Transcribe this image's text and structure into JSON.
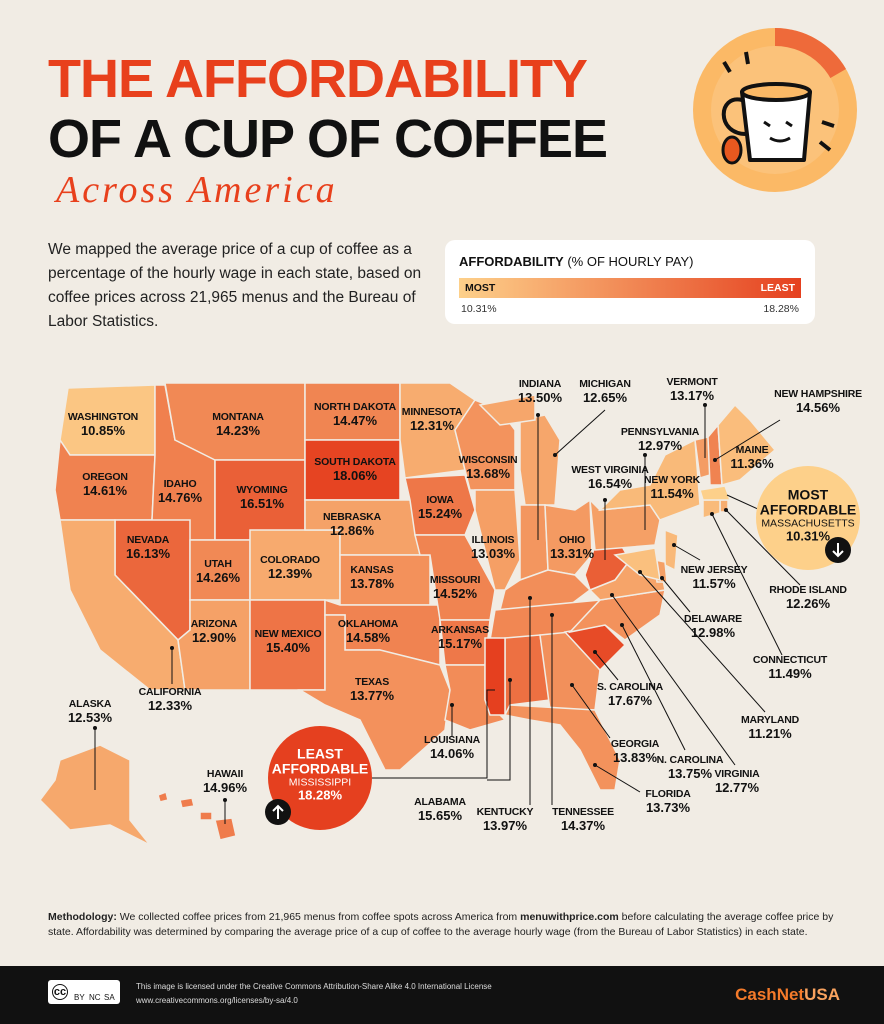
{
  "header": {
    "title_line_1": "THE AFFORDABILITY",
    "title_line_2": "OF A CUP OF COFFEE",
    "subtitle": "Across America"
  },
  "description": "We mapped the average price of a cup of coffee as a percentage of the hourly wage in each state, based on coffee prices across 21,965 menus and the Bureau of Labor Statistics.",
  "legend": {
    "title": "AFFORDABILITY",
    "unit": "(% OF HOURLY PAY)",
    "low_label": "MOST",
    "high_label": "LEAST",
    "low_value": "10.31%",
    "high_value": "18.28%"
  },
  "states": [
    {
      "name": "WASHINGTON",
      "value": "10.85%"
    },
    {
      "name": "OREGON",
      "value": "14.61%"
    },
    {
      "name": "IDAHO",
      "value": "14.76%"
    },
    {
      "name": "MONTANA",
      "value": "14.23%"
    },
    {
      "name": "WYOMING",
      "value": "16.51%"
    },
    {
      "name": "NEVADA",
      "value": "16.13%"
    },
    {
      "name": "CALIFORNIA",
      "value": "12.33%"
    },
    {
      "name": "UTAH",
      "value": "14.26%"
    },
    {
      "name": "COLORADO",
      "value": "12.39%"
    },
    {
      "name": "ARIZONA",
      "value": "12.90%"
    },
    {
      "name": "NEW MEXICO",
      "value": "15.40%"
    },
    {
      "name": "NORTH DAKOTA",
      "value": "14.47%"
    },
    {
      "name": "SOUTH DAKOTA",
      "value": "18.06%"
    },
    {
      "name": "NEBRASKA",
      "value": "12.86%"
    },
    {
      "name": "KANSAS",
      "value": "13.78%"
    },
    {
      "name": "OKLAHOMA",
      "value": "14.58%"
    },
    {
      "name": "TEXAS",
      "value": "13.77%"
    },
    {
      "name": "MINNESOTA",
      "value": "12.31%"
    },
    {
      "name": "IOWA",
      "value": "15.24%"
    },
    {
      "name": "MISSOURI",
      "value": "14.52%"
    },
    {
      "name": "ARKANSAS",
      "value": "15.17%"
    },
    {
      "name": "LOUISIANA",
      "value": "14.06%"
    },
    {
      "name": "WISCONSIN",
      "value": "13.68%"
    },
    {
      "name": "ILLINOIS",
      "value": "13.03%"
    },
    {
      "name": "MICHIGAN",
      "value": "12.65%"
    },
    {
      "name": "INDIANA",
      "value": "13.50%"
    },
    {
      "name": "OHIO",
      "value": "13.31%"
    },
    {
      "name": "KENTUCKY",
      "value": "13.97%"
    },
    {
      "name": "TENNESSEE",
      "value": "14.37%"
    },
    {
      "name": "ALABAMA",
      "value": "15.65%"
    },
    {
      "name": "GEORGIA",
      "value": "13.83%"
    },
    {
      "name": "FLORIDA",
      "value": "13.73%"
    },
    {
      "name": "S. CAROLINA",
      "value": "17.67%"
    },
    {
      "name": "N. CAROLINA",
      "value": "13.75%"
    },
    {
      "name": "VIRGINIA",
      "value": "12.77%"
    },
    {
      "name": "WEST VIRGINIA",
      "value": "16.54%"
    },
    {
      "name": "PENNSYLVANIA",
      "value": "12.97%"
    },
    {
      "name": "NEW YORK",
      "value": "11.54%"
    },
    {
      "name": "VERMONT",
      "value": "13.17%"
    },
    {
      "name": "NEW HAMPSHIRE",
      "value": "14.56%"
    },
    {
      "name": "MAINE",
      "value": "11.36%"
    },
    {
      "name": "RHODE ISLAND",
      "value": "12.26%"
    },
    {
      "name": "CONNECTICUT",
      "value": "11.49%"
    },
    {
      "name": "NEW JERSEY",
      "value": "11.57%"
    },
    {
      "name": "DELAWARE",
      "value": "12.98%"
    },
    {
      "name": "MARYLAND",
      "value": "11.21%"
    },
    {
      "name": "ALASKA",
      "value": "12.53%"
    },
    {
      "name": "HAWAII",
      "value": "14.96%"
    }
  ],
  "callouts": {
    "most": {
      "heading_1": "MOST",
      "heading_2": "AFFORDABLE",
      "state": "MASSACHUSETTS",
      "value": "10.31%"
    },
    "least": {
      "heading_1": "LEAST",
      "heading_2": "AFFORDABLE",
      "state": "MISSISSIPPI",
      "value": "18.28%"
    }
  },
  "methodology": {
    "label": "Methodology:",
    "text_1": "We collected coffee prices from 21,965 menus from coffee spots across America from",
    "link": "menuwithprice.com",
    "text_2": "before calculating the average coffee price by state. Affordability was determined by comparing the average price of a cup of coffee to the average hourly wage (from the Bureau of Labor Statistics) in each state."
  },
  "footer": {
    "cc": "cc",
    "by": "BY",
    "nc": "NC",
    "sa": "SA",
    "license_1": "This image is licensed under the Creative Commons Attribution-Share Alike 4.0 International License",
    "license_2": "www.creativecommons.org/licenses/by-sa/4.0",
    "brand_1": "CashNet",
    "brand_2": "USA"
  }
}
